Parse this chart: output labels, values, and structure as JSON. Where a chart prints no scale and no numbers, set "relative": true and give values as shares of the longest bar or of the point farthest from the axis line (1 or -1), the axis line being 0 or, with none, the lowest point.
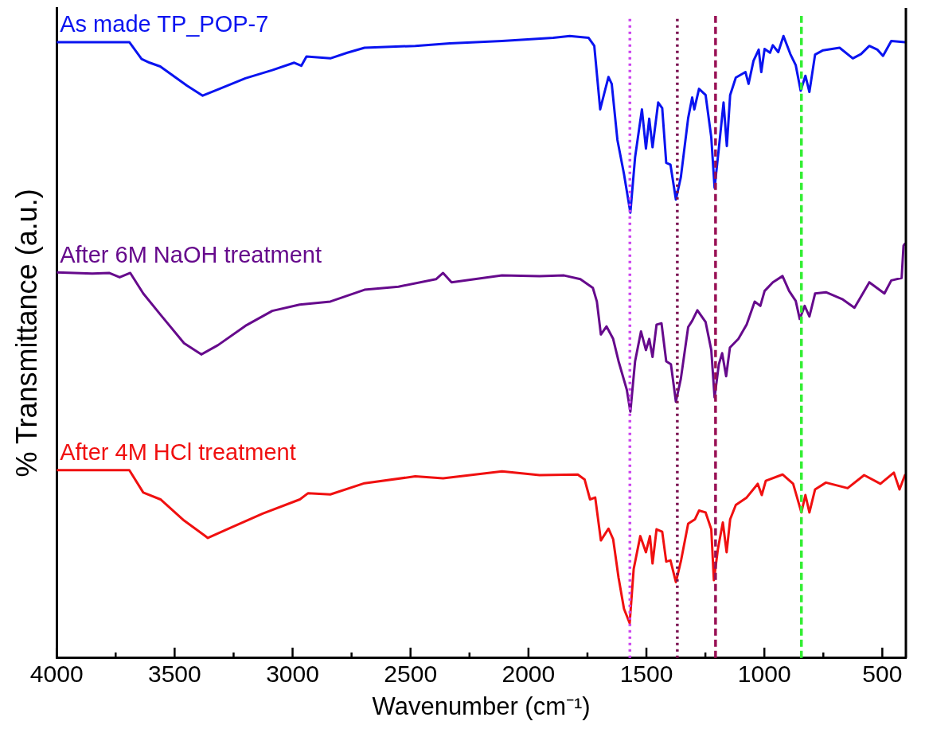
{
  "chart_data": {
    "type": "line",
    "xlabel": "Wavenumber (cm⁻¹)",
    "ylabel": "% Transmittance (a.u.)",
    "relative": true,
    "legend": false,
    "grid": false,
    "marker": "none",
    "line_style": "solid",
    "xlim": [
      4000,
      400
    ],
    "xticks": [
      4000,
      {
        "value": 3750,
        "label": null
      },
      3500,
      {
        "value": 3250,
        "label": null
      },
      3000,
      {
        "value": 2750,
        "label": null
      },
      2500,
      {
        "value": 2250,
        "label": null
      },
      2000,
      {
        "value": 1750,
        "label": null
      },
      1500,
      {
        "value": 1250,
        "label": null
      },
      1000,
      {
        "value": 750,
        "label": null
      },
      500
    ],
    "series": [
      {
        "name": "As made TP_POP-7",
        "color": "#0a14f0",
        "x": [
          4000,
          3692,
          3640,
          3606,
          3561,
          3447,
          3381,
          3316,
          3200,
          3086,
          2993,
          2963,
          2941,
          2840,
          2768,
          2695,
          2480,
          2334,
          2112,
          1895,
          1825,
          1745,
          1721,
          1696,
          1661,
          1647,
          1623,
          1595,
          1568,
          1548,
          1519,
          1502,
          1488,
          1474,
          1450,
          1433,
          1416,
          1398,
          1375,
          1354,
          1323,
          1306,
          1297,
          1277,
          1249,
          1225,
          1211,
          1193,
          1173,
          1159,
          1145,
          1121,
          1080,
          1067,
          1046,
          1024,
          1013,
          999,
          976,
          964,
          941,
          919,
          890,
          867,
          846,
          826,
          809,
          785,
          751,
          681,
          625,
          590,
          555,
          521,
          497,
          462,
          404
        ],
        "values": [
          0.99,
          0.99,
          0.963,
          0.957,
          0.951,
          0.92,
          0.904,
          0.914,
          0.932,
          0.945,
          0.957,
          0.952,
          0.967,
          0.964,
          0.973,
          0.981,
          0.984,
          0.988,
          0.992,
          0.997,
          1.0,
          0.997,
          0.984,
          0.882,
          0.934,
          0.923,
          0.833,
          0.778,
          0.716,
          0.805,
          0.882,
          0.819,
          0.867,
          0.821,
          0.893,
          0.884,
          0.796,
          0.793,
          0.737,
          0.773,
          0.868,
          0.901,
          0.882,
          0.915,
          0.905,
          0.837,
          0.756,
          0.819,
          0.893,
          0.823,
          0.905,
          0.933,
          0.942,
          0.923,
          0.96,
          0.978,
          0.942,
          0.979,
          0.973,
          0.985,
          0.974,
          1.0,
          0.971,
          0.953,
          0.912,
          0.936,
          0.91,
          0.97,
          0.977,
          0.981,
          0.964,
          0.971,
          0.984,
          0.978,
          0.968,
          0.992,
          0.99
        ]
      },
      {
        "name": "After 6M NaOH treatment",
        "color": "#660a8c",
        "x": [
          4000,
          3849,
          3778,
          3733,
          3688,
          3633,
          3560,
          3460,
          3387,
          3316,
          3200,
          3086,
          2970,
          2840,
          2695,
          2551,
          2392,
          2362,
          2326,
          2112,
          1953,
          1849,
          1780,
          1727,
          1710,
          1693,
          1669,
          1641,
          1618,
          1583,
          1568,
          1548,
          1523,
          1502,
          1488,
          1474,
          1457,
          1436,
          1416,
          1396,
          1375,
          1354,
          1323,
          1306,
          1284,
          1249,
          1225,
          1211,
          1193,
          1179,
          1162,
          1146,
          1110,
          1075,
          1041,
          1017,
          999,
          964,
          923,
          895,
          867,
          850,
          829,
          809,
          785,
          739,
          670,
          618,
          555,
          491,
          462,
          418,
          410,
          404
        ],
        "values": [
          0.62,
          0.618,
          0.619,
          0.612,
          0.619,
          0.586,
          0.552,
          0.506,
          0.488,
          0.503,
          0.534,
          0.558,
          0.568,
          0.573,
          0.592,
          0.597,
          0.609,
          0.619,
          0.604,
          0.615,
          0.614,
          0.615,
          0.609,
          0.595,
          0.573,
          0.52,
          0.533,
          0.513,
          0.477,
          0.431,
          0.396,
          0.477,
          0.525,
          0.495,
          0.513,
          0.484,
          0.536,
          0.538,
          0.477,
          0.472,
          0.412,
          0.449,
          0.532,
          0.542,
          0.559,
          0.54,
          0.495,
          0.419,
          0.472,
          0.49,
          0.453,
          0.499,
          0.513,
          0.536,
          0.573,
          0.566,
          0.59,
          0.604,
          0.614,
          0.59,
          0.574,
          0.545,
          0.566,
          0.549,
          0.586,
          0.588,
          0.577,
          0.563,
          0.604,
          0.586,
          0.607,
          0.611,
          0.663,
          0.666
        ]
      },
      {
        "name": "After 4M HCl treatment",
        "color": "#f01010",
        "x": [
          4000,
          3692,
          3633,
          3560,
          3460,
          3359,
          3259,
          3127,
          2969,
          2934,
          2840,
          2695,
          2480,
          2362,
          2112,
          1953,
          1791,
          1762,
          1739,
          1717,
          1693,
          1661,
          1641,
          1618,
          1595,
          1571,
          1554,
          1526,
          1502,
          1485,
          1474,
          1457,
          1433,
          1416,
          1398,
          1375,
          1353,
          1323,
          1294,
          1277,
          1249,
          1225,
          1214,
          1197,
          1176,
          1160,
          1145,
          1121,
          1075,
          1028,
          1011,
          994,
          923,
          878,
          843,
          826,
          809,
          785,
          739,
          647,
          577,
          508,
          451,
          427,
          404
        ],
        "values": [
          0.302,
          0.302,
          0.266,
          0.255,
          0.221,
          0.193,
          0.21,
          0.232,
          0.255,
          0.265,
          0.263,
          0.281,
          0.292,
          0.289,
          0.3,
          0.294,
          0.295,
          0.287,
          0.255,
          0.258,
          0.189,
          0.208,
          0.191,
          0.129,
          0.079,
          0.056,
          0.143,
          0.196,
          0.17,
          0.196,
          0.152,
          0.207,
          0.203,
          0.155,
          0.157,
          0.122,
          0.157,
          0.216,
          0.223,
          0.237,
          0.234,
          0.207,
          0.125,
          0.175,
          0.218,
          0.17,
          0.223,
          0.246,
          0.258,
          0.28,
          0.262,
          0.285,
          0.295,
          0.28,
          0.234,
          0.262,
          0.234,
          0.271,
          0.282,
          0.273,
          0.294,
          0.28,
          0.298,
          0.271,
          0.294
        ]
      }
    ],
    "ref_lines": [
      {
        "axis": "x",
        "value": 1570,
        "color": "#cc44ee",
        "line_style": "dotted"
      },
      {
        "axis": "x",
        "value": 1369,
        "color": "#7a1050",
        "line_style": "dotted"
      },
      {
        "axis": "x",
        "value": 1207,
        "color": "#991155",
        "line_style": "dashed"
      },
      {
        "axis": "x",
        "value": 843,
        "color": "#33ee33",
        "line_style": "dashed"
      }
    ]
  }
}
